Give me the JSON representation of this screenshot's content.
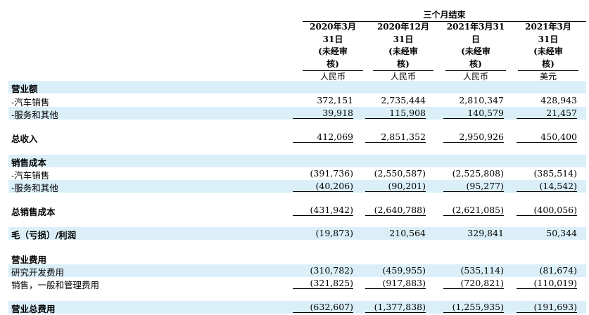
{
  "header": {
    "period": "三个月结束",
    "columns": [
      {
        "label": "2020年3月31日(未经审核)",
        "lines": [
          "2020年3月",
          "31日",
          "(未经审",
          "核)"
        ],
        "currency": "人民币"
      },
      {
        "label": "2020年12月31日(未经审核)",
        "lines": [
          "2020年12月",
          "31日",
          "(未经审",
          "核)"
        ],
        "currency": "人民币"
      },
      {
        "label": "2021年3月31日(未经审核)",
        "lines": [
          "2021年3月31",
          "日",
          "(未经审",
          "核)"
        ],
        "currency": "人民币"
      },
      {
        "label": "2021年3月31日(未经审核)",
        "lines": [
          "2021年3月",
          "31日",
          "(未经审",
          "核)"
        ],
        "currency": "美元"
      }
    ]
  },
  "rows": [
    {
      "label": "营业额",
      "bold": true,
      "shade": true,
      "values": []
    },
    {
      "label": "-汽车销售",
      "values": [
        "372,151",
        "2,735,444",
        "2,810,347",
        "428,943"
      ]
    },
    {
      "label": "-服务和其他",
      "shade": true,
      "values": [
        "39,918",
        "115,908",
        "140,579",
        "21,457"
      ],
      "underline": true
    },
    {
      "label": "总收入",
      "bold": true,
      "values": [
        "412,069",
        "2,851,352",
        "2,950,926",
        "450,400"
      ],
      "underline": true
    },
    {
      "label": "销售成本",
      "bold": true,
      "shade": true,
      "values": []
    },
    {
      "label": "-汽车销售",
      "values": [
        "(391,736)",
        "(2,550,587)",
        "(2,525,808)",
        "(385,514)"
      ]
    },
    {
      "label": "-服务和其他",
      "shade": true,
      "values": [
        "(40,206)",
        "(90,201)",
        "(95,277)",
        "(14,542)"
      ],
      "underline": true
    },
    {
      "label": "总销售成本",
      "bold": true,
      "values": [
        "(431,942)",
        "(2,640,788)",
        "(2,621,085)",
        "(400,056)"
      ],
      "underline": true
    },
    {
      "label": "毛（亏损）/利润",
      "bold": true,
      "shade": true,
      "values": [
        "(19,873)",
        "210,564",
        "329,841",
        "50,344"
      ]
    },
    {
      "label": "营业费用",
      "bold": true,
      "values": []
    },
    {
      "label": "研究开发费用",
      "shade": true,
      "values": [
        "(310,782)",
        "(459,955)",
        "(535,114)",
        "(81,674)"
      ]
    },
    {
      "label": "销售，一般和管理费用",
      "values": [
        "(321,825)",
        "(917,883)",
        "(720,821)",
        "(110,019)"
      ],
      "underline": true
    },
    {
      "label": "营业总费用",
      "bold": true,
      "shade": true,
      "values": [
        "(632,607)",
        "(1,377,838)",
        "(1,255,935)",
        "(191,693)"
      ],
      "underline": true
    }
  ]
}
